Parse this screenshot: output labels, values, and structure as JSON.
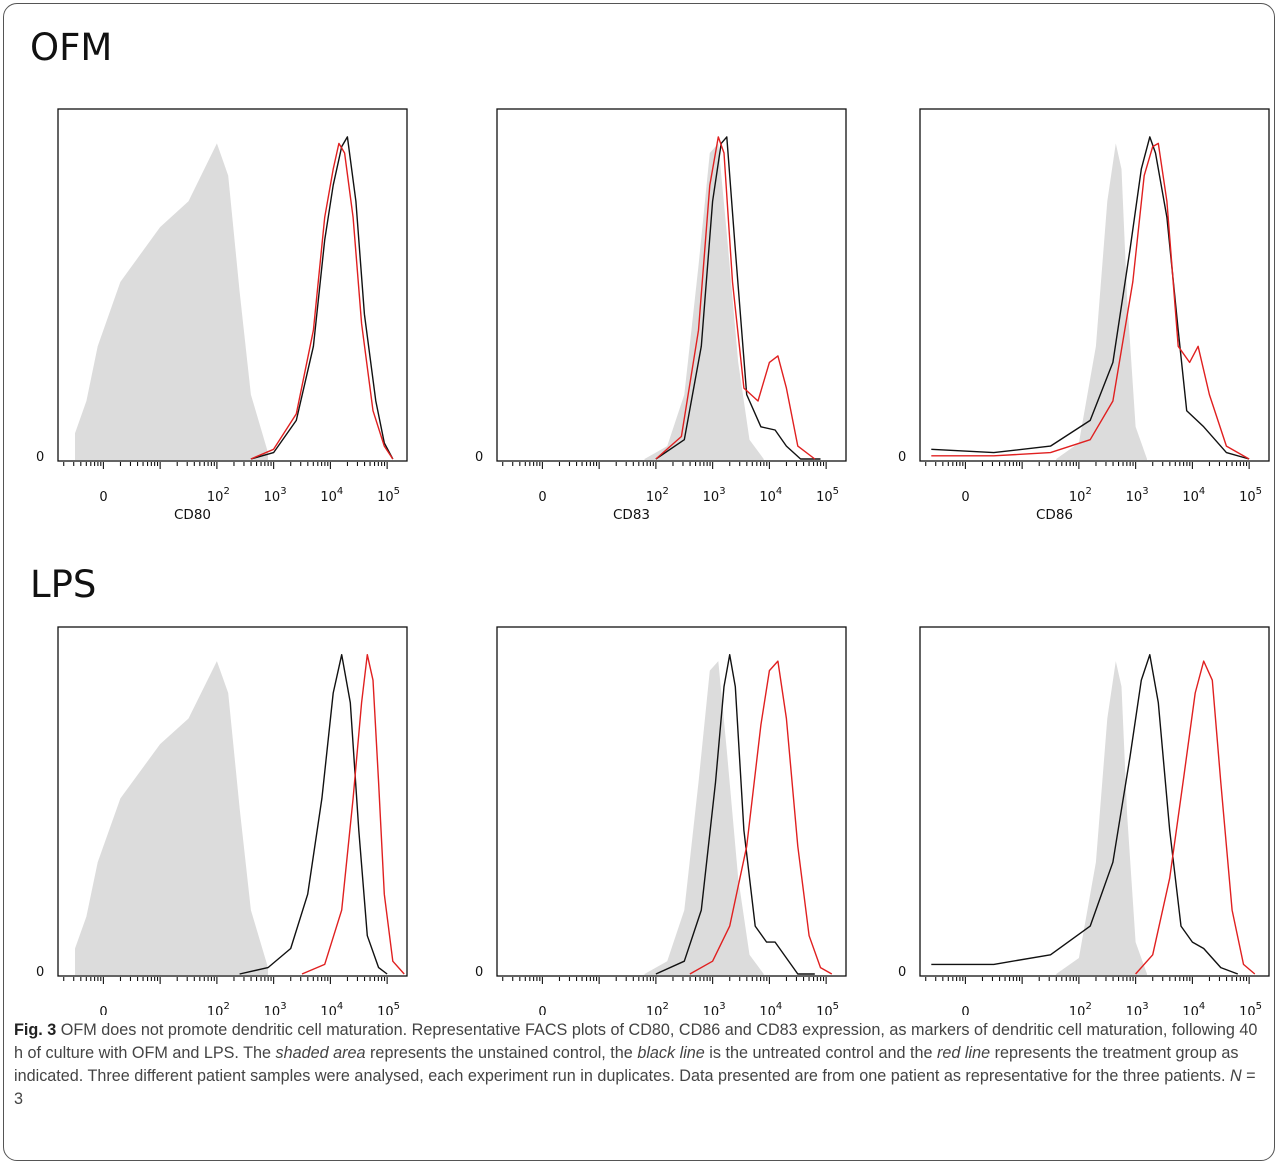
{
  "colors": {
    "unstained": "#dcdcdc",
    "untreated": "#111111",
    "treatment": "#e02020"
  },
  "axis": {
    "zero_label": "0",
    "y_zero_label": "0",
    "scale": "biexponential"
  },
  "panels": [
    {
      "group_label": "OFM",
      "charts": [
        {
          "type": "area",
          "marker": "CD80",
          "ticks": [
            "10^2",
            "10^3",
            "10^4",
            "10^5"
          ],
          "series": [
            {
              "kind": "shaded",
              "x": [
                -0.5,
                -0.3,
                -0.1,
                0.3,
                1.0,
                1.5,
                2.0,
                2.2,
                2.4,
                2.6,
                2.9
              ],
              "y": [
                0.08,
                0.18,
                0.35,
                0.55,
                0.72,
                0.8,
                0.98,
                0.88,
                0.52,
                0.2,
                0.02
              ]
            },
            {
              "kind": "black",
              "x": [
                2.6,
                3.0,
                3.4,
                3.7,
                3.9,
                4.05,
                4.2,
                4.3,
                4.45,
                4.6,
                4.8,
                4.95,
                5.1
              ],
              "y": [
                0.0,
                0.02,
                0.12,
                0.35,
                0.68,
                0.85,
                0.97,
                1.0,
                0.8,
                0.45,
                0.18,
                0.05,
                0.0
              ]
            },
            {
              "kind": "red",
              "x": [
                2.6,
                3.0,
                3.4,
                3.7,
                3.9,
                4.05,
                4.15,
                4.25,
                4.4,
                4.55,
                4.75,
                4.95,
                5.1
              ],
              "y": [
                0.0,
                0.03,
                0.14,
                0.4,
                0.75,
                0.9,
                0.98,
                0.95,
                0.75,
                0.42,
                0.15,
                0.04,
                0.0
              ]
            }
          ]
        },
        {
          "type": "area",
          "marker": "CD83",
          "ticks": [
            "10^2",
            "10^3",
            "10^4",
            "10^5"
          ],
          "series": [
            {
              "kind": "shaded",
              "x": [
                1.8,
                2.2,
                2.5,
                2.75,
                2.95,
                3.1,
                3.25,
                3.45,
                3.65,
                3.9
              ],
              "y": [
                0.0,
                0.04,
                0.2,
                0.6,
                0.95,
                0.98,
                0.7,
                0.3,
                0.06,
                0.0
              ]
            },
            {
              "kind": "black",
              "x": [
                2.0,
                2.5,
                2.8,
                3.0,
                3.15,
                3.25,
                3.4,
                3.6,
                3.85,
                4.1,
                4.3,
                4.55,
                4.9
              ],
              "y": [
                0.0,
                0.06,
                0.35,
                0.8,
                0.98,
                1.0,
                0.65,
                0.2,
                0.1,
                0.09,
                0.04,
                0.0,
                0.0
              ]
            },
            {
              "kind": "red",
              "x": [
                2.0,
                2.45,
                2.75,
                2.95,
                3.1,
                3.2,
                3.35,
                3.55,
                3.8,
                4.0,
                4.15,
                4.3,
                4.5,
                4.8
              ],
              "y": [
                0.0,
                0.07,
                0.4,
                0.85,
                1.0,
                0.95,
                0.55,
                0.22,
                0.18,
                0.3,
                0.32,
                0.22,
                0.04,
                0.0
              ]
            }
          ]
        },
        {
          "type": "area",
          "marker": "CD86",
          "ticks": [
            "10^2",
            "10^3",
            "10^4",
            "10^5"
          ],
          "series": [
            {
              "kind": "shaded",
              "x": [
                1.6,
                2.0,
                2.3,
                2.5,
                2.65,
                2.75,
                2.85,
                3.0,
                3.2
              ],
              "y": [
                0.0,
                0.05,
                0.35,
                0.8,
                0.98,
                0.9,
                0.5,
                0.1,
                0.0
              ]
            },
            {
              "kind": "black",
              "x": [
                -0.6,
                0.5,
                1.5,
                2.2,
                2.6,
                2.9,
                3.1,
                3.25,
                3.35,
                3.55,
                3.75,
                3.9,
                4.2,
                4.6,
                5.0
              ],
              "y": [
                0.03,
                0.02,
                0.04,
                0.12,
                0.3,
                0.65,
                0.9,
                1.0,
                0.95,
                0.75,
                0.4,
                0.15,
                0.1,
                0.02,
                0.0
              ]
            },
            {
              "kind": "red",
              "x": [
                -0.6,
                0.5,
                1.5,
                2.2,
                2.6,
                2.95,
                3.15,
                3.3,
                3.4,
                3.55,
                3.75,
                3.95,
                4.1,
                4.3,
                4.6,
                5.0
              ],
              "y": [
                0.01,
                0.01,
                0.02,
                0.06,
                0.18,
                0.55,
                0.88,
                0.97,
                0.98,
                0.8,
                0.35,
                0.3,
                0.35,
                0.2,
                0.04,
                0.0
              ]
            }
          ]
        }
      ]
    },
    {
      "group_label": "LPS",
      "charts": [
        {
          "type": "area",
          "marker": "CD80",
          "ticks": [
            "10^2",
            "10^3",
            "10^4",
            "10^5"
          ],
          "series": [
            {
              "kind": "shaded",
              "x": [
                -0.5,
                -0.3,
                -0.1,
                0.3,
                1.0,
                1.5,
                2.0,
                2.2,
                2.4,
                2.6,
                2.9
              ],
              "y": [
                0.08,
                0.18,
                0.35,
                0.55,
                0.72,
                0.8,
                0.98,
                0.88,
                0.52,
                0.2,
                0.02
              ]
            },
            {
              "kind": "black",
              "x": [
                2.4,
                2.9,
                3.3,
                3.6,
                3.85,
                4.05,
                4.2,
                4.35,
                4.5,
                4.65,
                4.85,
                5.0
              ],
              "y": [
                0.0,
                0.02,
                0.08,
                0.25,
                0.55,
                0.88,
                1.0,
                0.85,
                0.45,
                0.12,
                0.02,
                0.0
              ]
            },
            {
              "kind": "red",
              "x": [
                3.5,
                3.9,
                4.2,
                4.4,
                4.55,
                4.65,
                4.75,
                4.85,
                4.95,
                5.1,
                5.3
              ],
              "y": [
                0.0,
                0.03,
                0.2,
                0.55,
                0.85,
                1.0,
                0.92,
                0.6,
                0.25,
                0.04,
                0.0
              ]
            }
          ]
        },
        {
          "type": "area",
          "marker": "CD83",
          "ticks": [
            "10^2",
            "10^3",
            "10^4",
            "10^5"
          ],
          "series": [
            {
              "kind": "shaded",
              "x": [
                1.8,
                2.2,
                2.5,
                2.75,
                2.95,
                3.1,
                3.25,
                3.45,
                3.65,
                3.9
              ],
              "y": [
                0.0,
                0.04,
                0.2,
                0.6,
                0.95,
                0.98,
                0.7,
                0.3,
                0.06,
                0.0
              ]
            },
            {
              "kind": "black",
              "x": [
                2.0,
                2.5,
                2.8,
                3.05,
                3.2,
                3.3,
                3.4,
                3.55,
                3.75,
                3.95,
                4.1,
                4.3,
                4.5,
                4.8
              ],
              "y": [
                0.0,
                0.04,
                0.2,
                0.6,
                0.9,
                1.0,
                0.9,
                0.45,
                0.15,
                0.1,
                0.1,
                0.05,
                0.0,
                0.0
              ]
            },
            {
              "kind": "red",
              "x": [
                2.6,
                3.0,
                3.3,
                3.6,
                3.85,
                4.0,
                4.15,
                4.3,
                4.5,
                4.7,
                4.9,
                5.1
              ],
              "y": [
                0.0,
                0.04,
                0.15,
                0.4,
                0.78,
                0.95,
                0.98,
                0.8,
                0.4,
                0.12,
                0.02,
                0.0
              ]
            }
          ]
        },
        {
          "type": "area",
          "marker": "CD86",
          "ticks": [
            "10^2",
            "10^3",
            "10^4",
            "10^5"
          ],
          "series": [
            {
              "kind": "shaded",
              "x": [
                1.6,
                2.0,
                2.3,
                2.5,
                2.65,
                2.75,
                2.85,
                3.0,
                3.2
              ],
              "y": [
                0.0,
                0.05,
                0.35,
                0.8,
                0.98,
                0.9,
                0.5,
                0.1,
                0.0
              ]
            },
            {
              "kind": "black",
              "x": [
                -0.6,
                0.5,
                1.5,
                2.2,
                2.6,
                2.9,
                3.1,
                3.25,
                3.4,
                3.6,
                3.8,
                4.0,
                4.2,
                4.5,
                4.8
              ],
              "y": [
                0.03,
                0.03,
                0.06,
                0.15,
                0.35,
                0.68,
                0.92,
                1.0,
                0.85,
                0.45,
                0.15,
                0.1,
                0.08,
                0.02,
                0.0
              ]
            },
            {
              "kind": "red",
              "x": [
                3.0,
                3.3,
                3.6,
                3.85,
                4.05,
                4.2,
                4.35,
                4.5,
                4.7,
                4.9,
                5.1
              ],
              "y": [
                0.0,
                0.06,
                0.3,
                0.62,
                0.88,
                0.98,
                0.92,
                0.6,
                0.2,
                0.03,
                0.0
              ]
            }
          ]
        }
      ]
    }
  ],
  "caption": {
    "label": "Fig. 3",
    "text_1": " OFM does not promote dendritic cell maturation. Representative FACS plots of CD80, CD86 and CD83 expression, as markers of dendritic cell maturation, following 40 h of culture with OFM and LPS. The ",
    "shaded": "shaded area",
    "text_2": " represents the unstained control, the ",
    "black": "black line",
    "text_3": " is the untreated control and the ",
    "red": "red line",
    "text_4": " represents the treatment group as indicated. Three different patient samples were analysed, each experiment run in duplicates. Data presented are from one patient as representative for the three patients. ",
    "n_label": "N",
    "n_text": " = 3"
  }
}
